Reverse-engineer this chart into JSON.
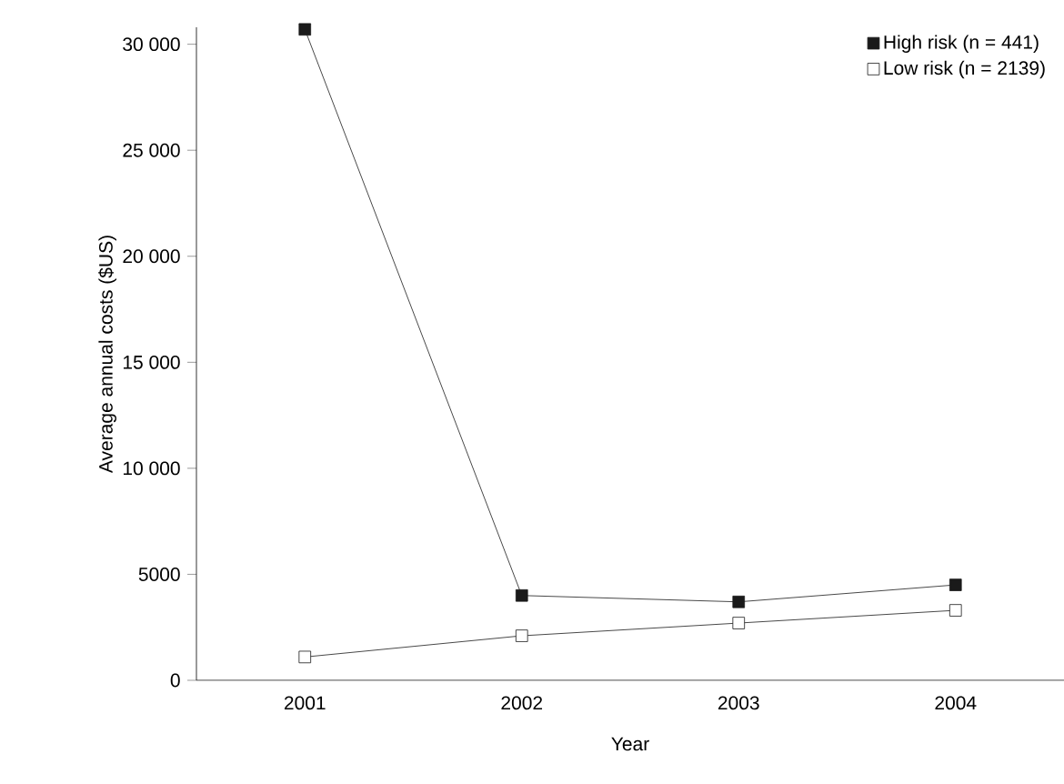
{
  "chart_data": {
    "type": "line",
    "xlabel": "Year",
    "ylabel": "Average annual costs ($US)",
    "categories": [
      "2001",
      "2002",
      "2003",
      "2004"
    ],
    "series": [
      {
        "name": "High risk (n = 441)",
        "color": "#1a1a1a",
        "values": [
          30700,
          4000,
          3700,
          4500
        ]
      },
      {
        "name": "Low risk (n = 2139)",
        "color": "#1a1a1a",
        "values": [
          1100,
          2100,
          2700,
          3300
        ]
      }
    ],
    "ylim": [
      0,
      30800
    ],
    "yticks": [
      0,
      {
        "value": 5000,
        "label": "5000"
      },
      {
        "value": 10000,
        "label": "10 000"
      },
      {
        "value": 15000,
        "label": "15 000"
      },
      {
        "value": 20000,
        "label": "20 000"
      },
      {
        "value": 25000,
        "label": "25 000"
      },
      {
        "value": 30000,
        "label": "30 000"
      }
    ],
    "marker": "square",
    "line_style": "solid",
    "legend": "top right",
    "grid": false
  }
}
